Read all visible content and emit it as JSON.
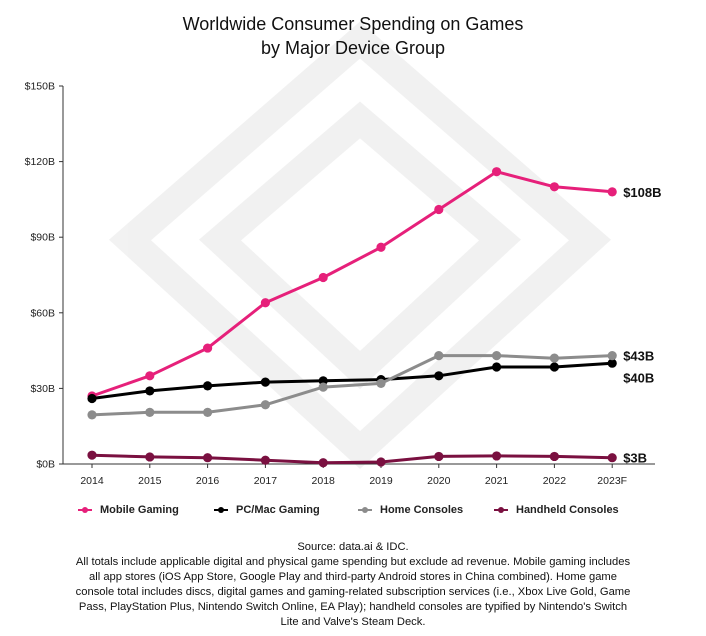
{
  "chart_data": {
    "type": "line",
    "title_line1": "Worldwide Consumer Spending on Games",
    "title_line2": "by Major Device Group",
    "xlabel": "",
    "ylabel": "",
    "x": [
      "2014",
      "2015",
      "2016",
      "2017",
      "2018",
      "2019",
      "2020",
      "2021",
      "2022",
      "2023F"
    ],
    "ylim": [
      0,
      150
    ],
    "yticks": [
      0,
      30,
      60,
      90,
      120,
      150
    ],
    "ytick_labels": [
      "$0B",
      "$30B",
      "$60B",
      "$90B",
      "$120B",
      "$150B"
    ],
    "series": [
      {
        "name": "Mobile Gaming",
        "color": "#e6207a",
        "values": [
          27,
          35,
          46,
          64,
          74,
          86,
          101,
          116,
          110,
          108
        ],
        "end_label": "$108B"
      },
      {
        "name": "PC/Mac Gaming",
        "color": "#000000",
        "values": [
          26,
          29,
          31,
          32.5,
          33,
          33.5,
          35,
          38.5,
          38.5,
          40
        ],
        "end_label": "$40B"
      },
      {
        "name": "Home Consoles",
        "color": "#8c8c8c",
        "values": [
          19.5,
          20.5,
          20.5,
          23.5,
          30.5,
          32,
          43,
          43,
          42,
          43
        ],
        "end_label": "$43B"
      },
      {
        "name": "Handheld Consoles",
        "color": "#7a1040",
        "values": [
          3.5,
          2.8,
          2.5,
          1.5,
          0.5,
          0.8,
          3,
          3.2,
          3,
          2.5
        ],
        "end_label": "$3B"
      }
    ],
    "legend_position": "bottom"
  },
  "source": {
    "line1": "Source: data.ai & IDC.",
    "body": "All totals include applicable digital and physical game spending but exclude ad revenue. Mobile gaming includes all app stores (iOS App Store, Google Play and third-party Android stores in China combined). Home game console total includes discs, digital games and gaming-related subscription services (i.e., Xbox Live Gold, Game Pass, PlayStation Plus, Nintendo Switch Online, EA Play); handheld consoles are typified by Nintendo's Switch Lite and Valve's Steam Deck."
  }
}
